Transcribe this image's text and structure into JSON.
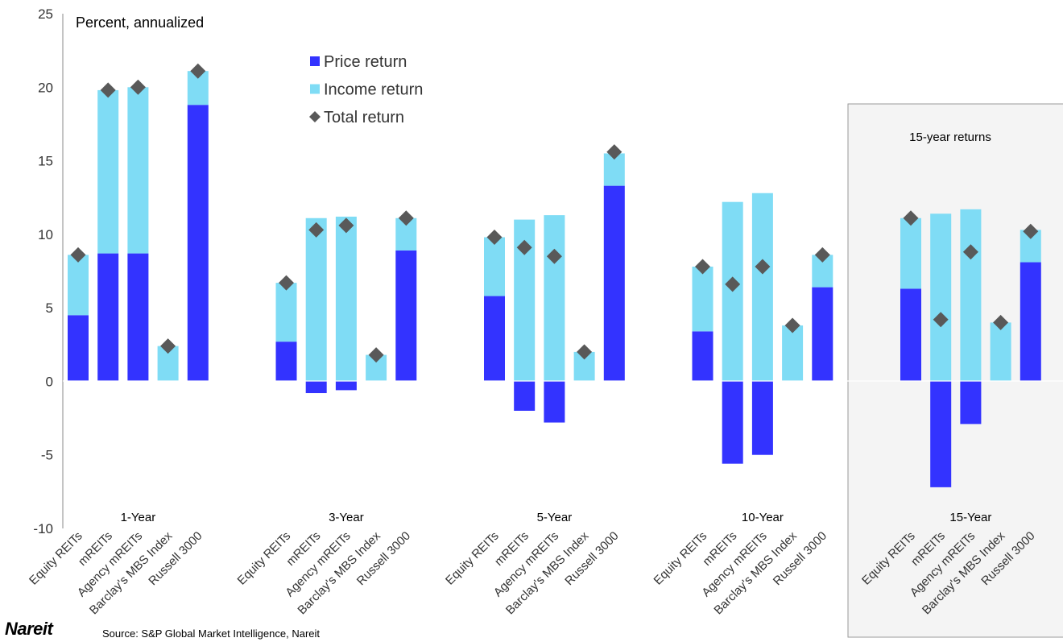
{
  "chart_data": {
    "type": "bar",
    "stacked": true,
    "units_label": "Percent, annualized",
    "ylim": [
      -10,
      25
    ],
    "yticks": [
      -10,
      -5,
      0,
      5,
      10,
      15,
      20,
      25
    ],
    "grid": false,
    "legend_position": "top-center",
    "legend": [
      {
        "name": "Price return",
        "color": "#3333ff",
        "marker": "square"
      },
      {
        "name": "Income return",
        "color": "#7fdcf5",
        "marker": "square"
      },
      {
        "name": "Total return",
        "color": "#595959",
        "marker": "diamond"
      }
    ],
    "categories": [
      "Equity REITs",
      "mREITs",
      "Agency mREITs",
      "Barclay's MBS Index",
      "Russell 3000"
    ],
    "groups": [
      {
        "label": "1-Year",
        "price": [
          4.5,
          8.7,
          8.7,
          0.0,
          18.8
        ],
        "income": [
          4.1,
          11.1,
          11.3,
          2.4,
          2.3
        ],
        "total": [
          8.6,
          19.8,
          20.0,
          2.4,
          21.1
        ]
      },
      {
        "label": "3-Year",
        "price": [
          2.7,
          -0.8,
          -0.6,
          0.0,
          8.9
        ],
        "income": [
          4.0,
          11.1,
          11.2,
          1.8,
          2.2
        ],
        "total": [
          6.7,
          10.3,
          10.6,
          1.8,
          11.1
        ]
      },
      {
        "label": "5-Year",
        "price": [
          5.8,
          -2.0,
          -2.8,
          0.0,
          13.3
        ],
        "income": [
          4.0,
          11.0,
          11.3,
          2.0,
          2.2
        ],
        "total": [
          9.8,
          9.1,
          8.5,
          2.0,
          15.6
        ]
      },
      {
        "label": "10-Year",
        "price": [
          3.4,
          -5.6,
          -5.0,
          0.0,
          6.4
        ],
        "income": [
          4.4,
          12.2,
          12.8,
          3.8,
          2.2
        ],
        "total": [
          7.8,
          6.6,
          7.8,
          3.8,
          8.6
        ]
      },
      {
        "label": "15-Year",
        "price": [
          6.3,
          -7.2,
          -2.9,
          0.0,
          8.1
        ],
        "income": [
          4.8,
          11.4,
          11.7,
          4.0,
          2.2
        ],
        "total": [
          11.1,
          4.2,
          8.8,
          4.0,
          10.2
        ]
      }
    ],
    "highlight_box_title": "15-year returns"
  },
  "footer": {
    "logo_text": "Nareit",
    "source": "Source: S&P Global Market Intelligence, Nareit"
  }
}
